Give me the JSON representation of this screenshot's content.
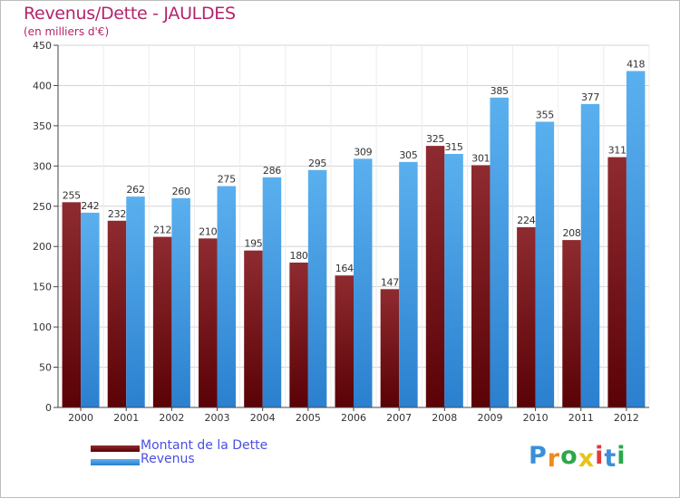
{
  "chart_data": {
    "type": "bar",
    "title": "Revenus/Dette - JAULDES",
    "subtitle": "(en milliers d'€)",
    "xlabel": "",
    "ylabel": "",
    "ylim": [
      0,
      450
    ],
    "yticks": [
      0,
      50,
      100,
      150,
      200,
      250,
      300,
      350,
      400,
      450
    ],
    "grid": true,
    "legend_position": "bottom-left",
    "categories": [
      "2000",
      "2001",
      "2002",
      "2003",
      "2004",
      "2005",
      "2006",
      "2007",
      "2008",
      "2009",
      "2010",
      "2011",
      "2012"
    ],
    "series": [
      {
        "name": "Montant de la Dette",
        "color": "#7a1418",
        "values": [
          255,
          232,
          212,
          210,
          195,
          180,
          164,
          147,
          325,
          301,
          224,
          208,
          311
        ]
      },
      {
        "name": "Revenus",
        "color": "#4aa3e8",
        "values": [
          242,
          262,
          260,
          275,
          286,
          295,
          309,
          305,
          315,
          385,
          355,
          377,
          418
        ]
      }
    ]
  },
  "logo": {
    "letters": [
      "P",
      "r",
      "o",
      "x",
      "i",
      "t",
      "i"
    ],
    "colors": [
      "#3b8fd9",
      "#f08a1c",
      "#2aa84a",
      "#e8c317",
      "#e03a3a",
      "#3b8fd9",
      "#2aa84a"
    ]
  }
}
